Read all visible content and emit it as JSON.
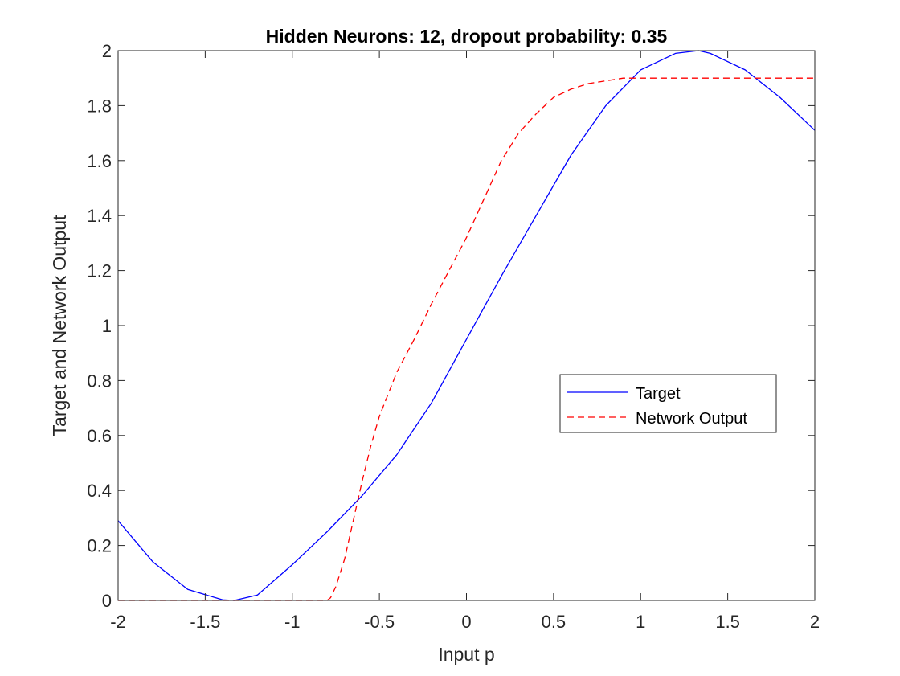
{
  "chart_data": {
    "type": "line",
    "title": "Hidden Neurons: 12, dropout probability: 0.35",
    "xlabel": "Input p",
    "ylabel": "Target and Network Output",
    "xlim": [
      -2,
      2
    ],
    "ylim": [
      0,
      2
    ],
    "xticks": [
      -2,
      -1.5,
      -1,
      -0.5,
      0,
      0.5,
      1,
      1.5,
      2
    ],
    "xtick_labels": [
      "-2",
      "-1.5",
      "-1",
      "-0.5",
      "0",
      "0.5",
      "1",
      "1.5",
      "2"
    ],
    "yticks": [
      0,
      0.2,
      0.4,
      0.6,
      0.8,
      1,
      1.2,
      1.4,
      1.6,
      1.8,
      2
    ],
    "ytick_labels": [
      "0",
      "0.2",
      "0.4",
      "0.6",
      "0.8",
      "1",
      "1.2",
      "1.4",
      "1.6",
      "1.8",
      "2"
    ],
    "grid": false,
    "legend_position": "right",
    "series": [
      {
        "name": "Target",
        "color": "#0000ff",
        "style": "solid",
        "x": [
          -2.0,
          -1.8,
          -1.6,
          -1.4,
          -1.333,
          -1.2,
          -1.0,
          -0.8,
          -0.6,
          -0.4,
          -0.2,
          0.0,
          0.2,
          0.4,
          0.6,
          0.8,
          1.0,
          1.2,
          1.333,
          1.4,
          1.6,
          1.8,
          2.0
        ],
        "y": [
          0.29,
          0.14,
          0.04,
          0.002,
          0.0,
          0.02,
          0.13,
          0.25,
          0.38,
          0.53,
          0.72,
          0.95,
          1.18,
          1.4,
          1.62,
          1.8,
          1.93,
          1.99,
          2.0,
          1.99,
          1.93,
          1.83,
          1.71
        ]
      },
      {
        "name": "Network Output",
        "color": "#ff0000",
        "style": "dashed",
        "x": [
          -2.0,
          -1.0,
          -0.8,
          -0.78,
          -0.75,
          -0.7,
          -0.65,
          -0.6,
          -0.55,
          -0.5,
          -0.4,
          -0.3,
          -0.2,
          -0.1,
          0.0,
          0.1,
          0.2,
          0.3,
          0.4,
          0.5,
          0.6,
          0.7,
          0.8,
          0.9,
          1.0,
          1.2,
          1.5,
          2.0
        ],
        "y": [
          0.0,
          0.0,
          0.0,
          0.01,
          0.05,
          0.15,
          0.29,
          0.43,
          0.56,
          0.67,
          0.83,
          0.95,
          1.08,
          1.2,
          1.32,
          1.46,
          1.6,
          1.7,
          1.77,
          1.83,
          1.86,
          1.88,
          1.89,
          1.9,
          1.9,
          1.9,
          1.9,
          1.9
        ]
      }
    ]
  }
}
